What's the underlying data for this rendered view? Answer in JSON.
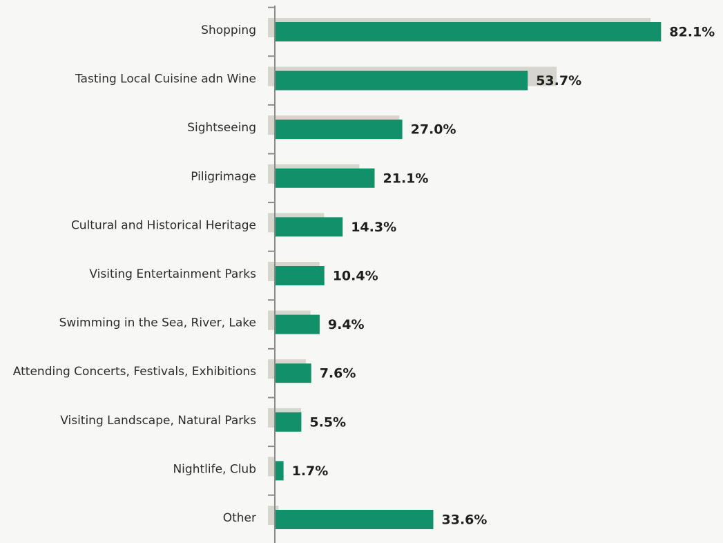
{
  "colors": {
    "background": "#f7f7f5",
    "bar": "#12906a",
    "shadow_bar": "#d6d6ce",
    "axis": "#8a8a8a"
  },
  "chart_data": {
    "type": "bar",
    "orientation": "horizontal",
    "title": "",
    "xlabel": "",
    "ylabel": "",
    "grid": false,
    "legend": "none",
    "xlim": [
      0,
      100
    ],
    "categories": [
      "Shopping",
      "Tasting Local Cuisine adn Wine",
      "Sightseeing",
      "Piligrimage",
      "Cultural and Historical Heritage",
      "Visiting Entertainment Parks",
      "Swimming in the Sea, River, Lake",
      "Attending Concerts, Festivals, Exhibitions",
      "Visiting Landscape, Natural Parks",
      "Nightlife, Club",
      "Other"
    ],
    "series": [
      {
        "values": [
          82.1,
          53.7,
          27.0,
          21.1,
          14.3,
          10.4,
          9.4,
          7.6,
          5.5,
          1.7,
          33.6
        ],
        "labels": [
          "82.1%",
          "53.7%",
          "27.0%",
          "21.1%",
          "14.3%",
          "10.4%",
          "9.4%",
          "7.6%",
          "5.5%",
          "1.7%",
          "33.6%"
        ]
      },
      {
        "values": [
          80.0,
          60.0,
          26.5,
          18.0,
          10.5,
          9.5,
          7.6,
          6.6,
          5.6,
          0.0,
          0.8
        ],
        "labels": []
      }
    ]
  }
}
